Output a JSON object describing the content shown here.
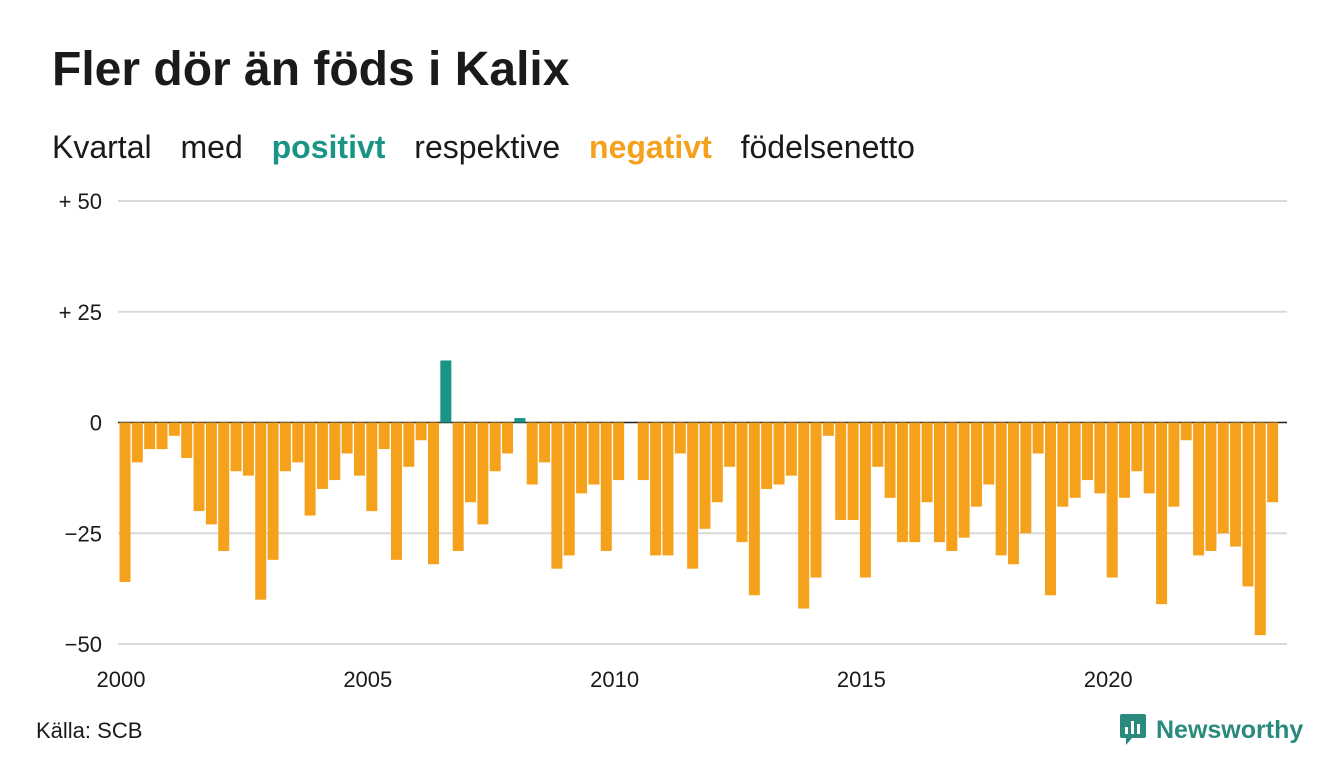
{
  "title": "Fler dör än föds i Kalix",
  "subtitle": {
    "part1": "Kvartal",
    "part2": "med",
    "positive_word": "positivt",
    "part3": "respektive",
    "negative_word": "negativt",
    "part4": "födelsenetto"
  },
  "colors": {
    "positive": "#1a9485",
    "negative": "#f5a11c",
    "logo": "#2a8a7e"
  },
  "source": "Källa: SCB",
  "logo": {
    "text": "Newsworthy",
    "icon": "newsworthy-logo-icon"
  },
  "chart_data": {
    "type": "bar",
    "title": "Fler dör än föds i Kalix",
    "ylim": [
      -50,
      50
    ],
    "yticks": [
      {
        "value": 50,
        "label": "+ 50"
      },
      {
        "value": 25,
        "label": "+ 25"
      },
      {
        "value": 0,
        "label": "0"
      },
      {
        "value": -25,
        "label": "−25"
      },
      {
        "value": -50,
        "label": "−50"
      }
    ],
    "xticks": [
      "2000",
      "2005",
      "2010",
      "2015",
      "2020"
    ],
    "start_year": 2000,
    "grid": true,
    "values": [
      -36,
      -9,
      -6,
      -6,
      -3,
      -8,
      -20,
      -23,
      -29,
      -11,
      -12,
      -40,
      -31,
      -11,
      -9,
      -21,
      -15,
      -13,
      -7,
      -12,
      -20,
      -6,
      -31,
      -10,
      -4,
      -32,
      14,
      -29,
      -18,
      -23,
      -11,
      -7,
      1,
      -14,
      -9,
      -33,
      -30,
      -16,
      -14,
      -29,
      -13,
      0,
      -13,
      -30,
      -30,
      -7,
      -33,
      -24,
      -18,
      -10,
      -27,
      -39,
      -15,
      -14,
      -12,
      -42,
      -35,
      -3,
      -22,
      -22,
      -35,
      -10,
      -17,
      -27,
      -27,
      -18,
      -27,
      -29,
      -26,
      -19,
      -14,
      -30,
      -32,
      -25,
      -7,
      -39,
      -19,
      -17,
      -13,
      -16,
      -35,
      -17,
      -11,
      -16,
      -41,
      -19,
      -4,
      -30,
      -29,
      -25,
      -28,
      -37,
      -48,
      -18
    ]
  }
}
